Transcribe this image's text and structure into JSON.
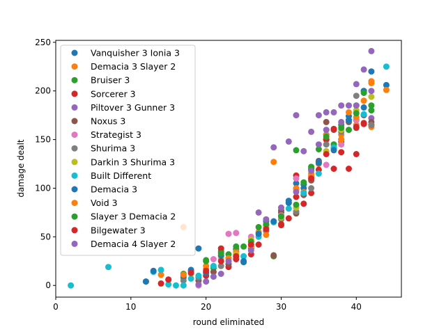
{
  "chart_data": {
    "type": "scatter",
    "xlabel": "round eliminated",
    "ylabel": "damage dealt",
    "xlim": [
      0,
      46
    ],
    "ylim": [
      -12,
      252
    ],
    "xticks": [
      0,
      10,
      20,
      30,
      40
    ],
    "yticks": [
      0,
      50,
      100,
      150,
      200,
      250
    ],
    "grid": false,
    "legend_position": "upper-left",
    "series": [
      {
        "name": "Vanquisher 3 Ionia 3",
        "color": "#1f77b4",
        "points": [
          [
            19,
            38
          ],
          [
            23,
            28
          ],
          [
            24,
            37
          ],
          [
            25,
            24
          ],
          [
            28,
            66
          ],
          [
            30,
            75
          ],
          [
            31,
            87
          ],
          [
            32,
            105
          ],
          [
            33,
            100
          ],
          [
            34,
            120
          ],
          [
            35,
            128
          ],
          [
            36,
            155
          ],
          [
            37,
            141
          ],
          [
            38,
            150
          ],
          [
            39,
            174
          ],
          [
            40,
            170
          ],
          [
            41,
            183
          ],
          [
            42,
            220
          ],
          [
            44,
            206
          ]
        ]
      },
      {
        "name": "Demacia 3 Slayer 2",
        "color": "#ff7f0e",
        "points": [
          [
            14,
            11
          ],
          [
            17,
            60
          ],
          [
            20,
            20
          ],
          [
            22,
            30
          ],
          [
            24,
            35
          ],
          [
            26,
            45
          ],
          [
            27,
            55
          ],
          [
            29,
            127
          ],
          [
            30,
            72
          ],
          [
            31,
            85
          ],
          [
            32,
            100
          ],
          [
            33,
            96
          ],
          [
            34,
            115
          ],
          [
            35,
            125
          ],
          [
            36,
            150
          ],
          [
            37,
            145
          ],
          [
            38,
            155
          ],
          [
            39,
            178
          ],
          [
            40,
            165
          ],
          [
            41,
            190
          ],
          [
            42,
            210
          ],
          [
            42,
            163
          ],
          [
            44,
            201
          ]
        ]
      },
      {
        "name": "Bruiser 3",
        "color": "#2ca02c",
        "points": [
          [
            17,
            12
          ],
          [
            20,
            25
          ],
          [
            21,
            18
          ],
          [
            22,
            35
          ],
          [
            23,
            32
          ],
          [
            25,
            40
          ],
          [
            27,
            60
          ],
          [
            29,
            30
          ],
          [
            30,
            75
          ],
          [
            31,
            85
          ],
          [
            32,
            139
          ],
          [
            33,
            104
          ],
          [
            34,
            122
          ],
          [
            35,
            140
          ],
          [
            36,
            150
          ],
          [
            37,
            145
          ],
          [
            38,
            165
          ],
          [
            39,
            160
          ],
          [
            40,
            185
          ],
          [
            41,
            200
          ],
          [
            42,
            185
          ],
          [
            42,
            180
          ]
        ]
      },
      {
        "name": "Sorcerer 3",
        "color": "#d62728",
        "points": [
          [
            14,
            2
          ],
          [
            15,
            6
          ],
          [
            18,
            15
          ],
          [
            20,
            10
          ],
          [
            22,
            38
          ],
          [
            23,
            19
          ],
          [
            24,
            27
          ],
          [
            26,
            32
          ],
          [
            27,
            42
          ],
          [
            28,
            56
          ],
          [
            30,
            62
          ],
          [
            31,
            69
          ],
          [
            32,
            113
          ],
          [
            33,
            84
          ],
          [
            34,
            95
          ],
          [
            35,
            119
          ],
          [
            36,
            150
          ],
          [
            37,
            120
          ],
          [
            38,
            137
          ],
          [
            39,
            120
          ],
          [
            40,
            135
          ],
          [
            41,
            167
          ],
          [
            42,
            165
          ]
        ]
      },
      {
        "name": "Piltover 3 Gunner 3",
        "color": "#9467bd",
        "points": [
          [
            20,
            4
          ],
          [
            22,
            12
          ],
          [
            24,
            32
          ],
          [
            27,
            75
          ],
          [
            29,
            142
          ],
          [
            30,
            80
          ],
          [
            31,
            148
          ],
          [
            32,
            175
          ],
          [
            33,
            138
          ],
          [
            34,
            158
          ],
          [
            35,
            175
          ],
          [
            36,
            178
          ],
          [
            37,
            178
          ],
          [
            38,
            185
          ],
          [
            39,
            185
          ],
          [
            40,
            207
          ],
          [
            41,
            222
          ],
          [
            42,
            241
          ],
          [
            42,
            172
          ]
        ]
      },
      {
        "name": "Noxus 3",
        "color": "#8c564b",
        "points": [
          [
            17,
            8
          ],
          [
            19,
            5
          ],
          [
            21,
            14
          ],
          [
            23,
            22
          ],
          [
            26,
            38
          ],
          [
            28,
            62
          ],
          [
            29,
            31
          ],
          [
            30,
            77
          ],
          [
            32,
            74
          ],
          [
            33,
            93
          ],
          [
            34,
            108
          ],
          [
            35,
            127
          ],
          [
            36,
            168
          ],
          [
            37,
            160
          ],
          [
            38,
            148
          ],
          [
            39,
            168
          ],
          [
            40,
            162
          ],
          [
            41,
            175
          ],
          [
            42,
            168
          ]
        ]
      },
      {
        "name": "Strategist 3",
        "color": "#e377c2",
        "points": [
          [
            19,
            0
          ],
          [
            21,
            27
          ],
          [
            23,
            53
          ],
          [
            24,
            54
          ],
          [
            26,
            50
          ],
          [
            28,
            60
          ],
          [
            30,
            72
          ],
          [
            32,
            110
          ],
          [
            34,
            112
          ],
          [
            36,
            124
          ],
          [
            38,
            145
          ],
          [
            40,
            170
          ],
          [
            42,
            165
          ]
        ]
      },
      {
        "name": "Shurima 3",
        "color": "#7f7f7f",
        "points": [
          [
            17,
            5
          ],
          [
            19,
            8
          ],
          [
            22,
            20
          ],
          [
            24,
            30
          ],
          [
            26,
            40
          ],
          [
            28,
            56
          ],
          [
            30,
            68
          ],
          [
            32,
            76
          ],
          [
            34,
            100
          ],
          [
            36,
            145
          ],
          [
            38,
            158
          ],
          [
            40,
            195
          ],
          [
            42,
            165
          ]
        ]
      },
      {
        "name": "Darkin 3 Shurima 3",
        "color": "#bcbd22",
        "points": [
          [
            18,
            12
          ],
          [
            20,
            14
          ],
          [
            22,
            28
          ],
          [
            24,
            32
          ],
          [
            26,
            47
          ],
          [
            28,
            60
          ],
          [
            30,
            70
          ],
          [
            32,
            80
          ],
          [
            34,
            110
          ],
          [
            36,
            138
          ],
          [
            38,
            160
          ],
          [
            40,
            180
          ],
          [
            42,
            194
          ]
        ]
      },
      {
        "name": "Built Different",
        "color": "#17becf",
        "points": [
          [
            2,
            0
          ],
          [
            7,
            19
          ],
          [
            12,
            4
          ],
          [
            13,
            14
          ],
          [
            14,
            16
          ],
          [
            15,
            1
          ],
          [
            16,
            0
          ],
          [
            17,
            0
          ],
          [
            18,
            7
          ],
          [
            19,
            10
          ],
          [
            21,
            20
          ],
          [
            23,
            25
          ],
          [
            25,
            30
          ],
          [
            27,
            50
          ],
          [
            29,
            65
          ],
          [
            31,
            79
          ],
          [
            33,
            95
          ],
          [
            35,
            115
          ],
          [
            37,
            142
          ],
          [
            39,
            170
          ],
          [
            41,
            176
          ],
          [
            44,
            225
          ]
        ]
      },
      {
        "name": "Demacia 3",
        "color": "#1f77b4",
        "points": [
          [
            12,
            4
          ],
          [
            13,
            15
          ],
          [
            17,
            10
          ],
          [
            18,
            16
          ],
          [
            20,
            13
          ],
          [
            22,
            31
          ],
          [
            25,
            25
          ],
          [
            27,
            53
          ],
          [
            29,
            66
          ],
          [
            31,
            85
          ],
          [
            33,
            104
          ],
          [
            35,
            126
          ],
          [
            37,
            139
          ],
          [
            39,
            170
          ],
          [
            41,
            200
          ]
        ]
      },
      {
        "name": "Void 3",
        "color": "#ff7f0e",
        "points": [
          [
            17,
            11
          ],
          [
            20,
            17
          ],
          [
            23,
            28
          ],
          [
            26,
            40
          ],
          [
            28,
            52
          ],
          [
            30,
            71
          ],
          [
            32,
            99
          ],
          [
            34,
            113
          ],
          [
            36,
            155
          ],
          [
            38,
            150
          ],
          [
            40,
            173
          ],
          [
            42,
            208
          ]
        ]
      },
      {
        "name": "Slayer 3 Demacia 2",
        "color": "#2ca02c",
        "points": [
          [
            20,
            26
          ],
          [
            22,
            33
          ],
          [
            24,
            40
          ],
          [
            26,
            45
          ],
          [
            28,
            63
          ],
          [
            30,
            71
          ],
          [
            32,
            83
          ],
          [
            33,
            106
          ],
          [
            34,
            119
          ],
          [
            36,
            153
          ],
          [
            38,
            162
          ],
          [
            40,
            177
          ],
          [
            41,
            198
          ]
        ]
      },
      {
        "name": "Bilgewater 3",
        "color": "#d62728",
        "points": [
          [
            15,
            6
          ],
          [
            18,
            13
          ],
          [
            20,
            15
          ],
          [
            22,
            25
          ],
          [
            24,
            30
          ],
          [
            26,
            42
          ],
          [
            28,
            58
          ],
          [
            30,
            63
          ],
          [
            32,
            91
          ],
          [
            34,
            110
          ],
          [
            36,
            135
          ],
          [
            37,
            161
          ],
          [
            40,
            163
          ],
          [
            41,
            166
          ]
        ]
      },
      {
        "name": "Demacia 4 Slayer 2",
        "color": "#9467bd",
        "points": [
          [
            19,
            1
          ],
          [
            21,
            9
          ],
          [
            23,
            25
          ],
          [
            26,
            36
          ],
          [
            28,
            68
          ],
          [
            30,
            80
          ],
          [
            32,
            96
          ],
          [
            34,
            118
          ],
          [
            35,
            145
          ],
          [
            36,
            160
          ],
          [
            38,
            168
          ],
          [
            40,
            185
          ],
          [
            42,
            200
          ]
        ]
      }
    ]
  }
}
